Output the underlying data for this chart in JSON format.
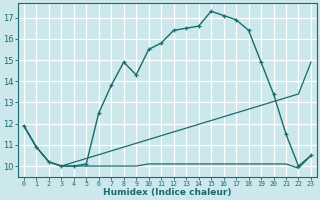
{
  "xlabel": "Humidex (Indice chaleur)",
  "bg_color": "#cce8ec",
  "grid_color": "#ffffff",
  "line_color": "#1a6b6b",
  "xlim": [
    -0.5,
    23.5
  ],
  "ylim": [
    9.5,
    17.7
  ],
  "yticks": [
    10,
    11,
    12,
    13,
    14,
    15,
    16,
    17
  ],
  "xticks": [
    0,
    1,
    2,
    3,
    4,
    5,
    6,
    7,
    8,
    9,
    10,
    11,
    12,
    13,
    14,
    15,
    16,
    17,
    18,
    19,
    20,
    21,
    22,
    23
  ],
  "curve_x": [
    0,
    1,
    2,
    3,
    4,
    5,
    6,
    7,
    8,
    9,
    10,
    11,
    12,
    13,
    14,
    15,
    16,
    17,
    18,
    19,
    20,
    21,
    22,
    23
  ],
  "curve_y": [
    11.9,
    10.9,
    10.2,
    10.0,
    10.0,
    10.1,
    12.5,
    13.8,
    14.9,
    14.3,
    15.5,
    15.8,
    16.4,
    16.5,
    16.6,
    17.3,
    17.1,
    16.9,
    16.4,
    14.9,
    13.4,
    11.5,
    10.0,
    10.5
  ],
  "mid_x": [
    0,
    1,
    2,
    3,
    22,
    23
  ],
  "mid_y": [
    11.9,
    10.9,
    10.2,
    10.0,
    13.4,
    14.9
  ],
  "bot_x": [
    0,
    1,
    2,
    3,
    4,
    5,
    6,
    7,
    8,
    9,
    10,
    11,
    12,
    13,
    14,
    15,
    16,
    17,
    18,
    19,
    20,
    21,
    22,
    23
  ],
  "bot_y": [
    11.9,
    10.9,
    10.2,
    10.0,
    10.0,
    10.0,
    10.0,
    10.0,
    10.0,
    10.0,
    10.1,
    10.1,
    10.1,
    10.1,
    10.1,
    10.1,
    10.1,
    10.1,
    10.1,
    10.1,
    10.1,
    10.1,
    9.9,
    10.5
  ]
}
